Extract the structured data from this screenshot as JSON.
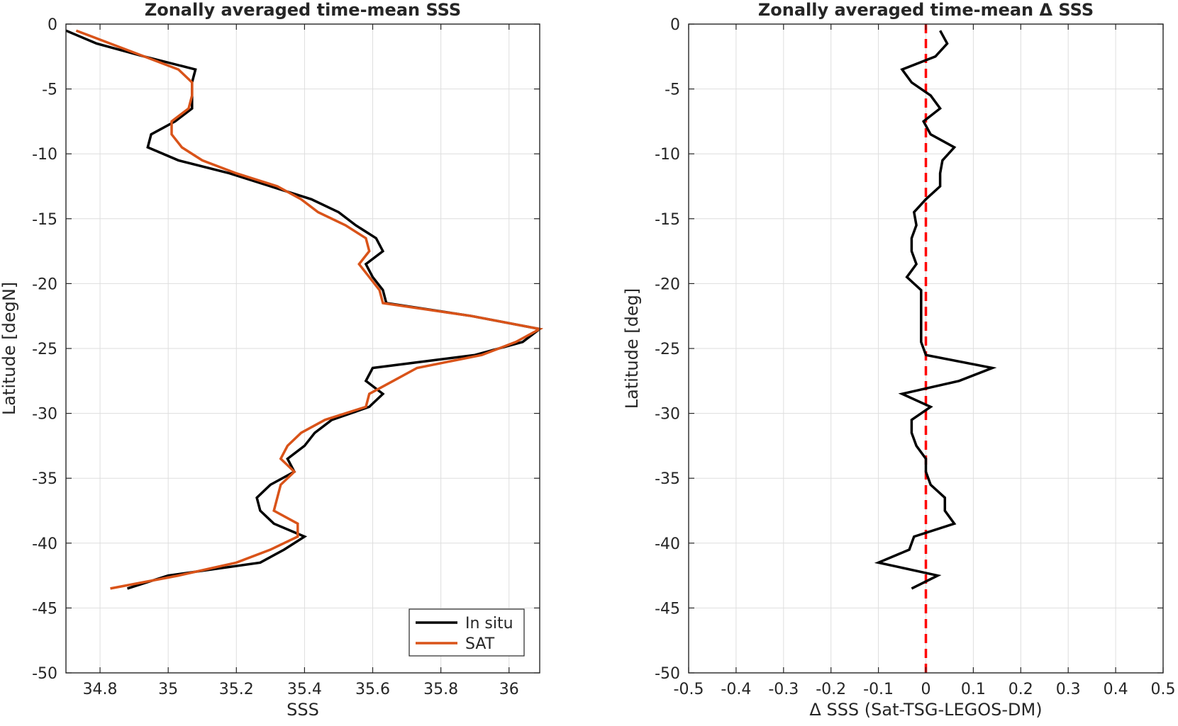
{
  "chart_data": [
    {
      "type": "line",
      "title": "Zonally averaged time-mean SSS",
      "xlabel": "SSS",
      "ylabel": "Latitude [degN]",
      "xlim": [
        34.7,
        36.09
      ],
      "ylim": [
        -50,
        0
      ],
      "xticks": [
        34.8,
        35,
        35.2,
        35.4,
        35.6,
        35.8,
        36
      ],
      "xtick_labels": [
        "34.8",
        "35",
        "35.2",
        "35.4",
        "35.6",
        "35.8",
        "36"
      ],
      "yticks": [
        0,
        -5,
        -10,
        -15,
        -20,
        -25,
        -30,
        -35,
        -40,
        -45,
        -50
      ],
      "ytick_labels": [
        "0",
        "-5",
        "-10",
        "-15",
        "-20",
        "-25",
        "-30",
        "-35",
        "-40",
        "-45",
        "-50"
      ],
      "grid": true,
      "legend": "bottom-right",
      "series": [
        {
          "name": "In situ",
          "color": "#000000",
          "points": [
            [
              34.7,
              -0.5
            ],
            [
              34.79,
              -1.5
            ],
            [
              34.93,
              -2.5
            ],
            [
              35.08,
              -3.5
            ],
            [
              35.07,
              -4.5
            ],
            [
              35.07,
              -5.5
            ],
            [
              35.07,
              -6.5
            ],
            [
              35.02,
              -7.5
            ],
            [
              34.95,
              -8.5
            ],
            [
              34.94,
              -9.5
            ],
            [
              35.03,
              -10.5
            ],
            [
              35.18,
              -11.5
            ],
            [
              35.3,
              -12.5
            ],
            [
              35.42,
              -13.5
            ],
            [
              35.5,
              -14.5
            ],
            [
              35.55,
              -15.5
            ],
            [
              35.61,
              -16.5
            ],
            [
              35.63,
              -17.5
            ],
            [
              35.58,
              -18.5
            ],
            [
              35.6,
              -19.5
            ],
            [
              35.63,
              -20.5
            ],
            [
              35.64,
              -21.5
            ],
            [
              35.89,
              -22.5
            ],
            [
              36.09,
              -23.5
            ],
            [
              36.04,
              -24.5
            ],
            [
              35.9,
              -25.5
            ],
            [
              35.6,
              -26.5
            ],
            [
              35.58,
              -27.5
            ],
            [
              35.63,
              -28.5
            ],
            [
              35.59,
              -29.5
            ],
            [
              35.48,
              -30.5
            ],
            [
              35.43,
              -31.5
            ],
            [
              35.4,
              -32.5
            ],
            [
              35.35,
              -33.5
            ],
            [
              35.37,
              -34.5
            ],
            [
              35.3,
              -35.5
            ],
            [
              35.26,
              -36.5
            ],
            [
              35.27,
              -37.5
            ],
            [
              35.31,
              -38.5
            ],
            [
              35.4,
              -39.5
            ],
            [
              35.34,
              -40.5
            ],
            [
              35.27,
              -41.5
            ],
            [
              35.0,
              -42.5
            ],
            [
              34.88,
              -43.5
            ]
          ]
        },
        {
          "name": "SAT",
          "color": "#d95319",
          "points": [
            [
              34.73,
              -0.5
            ],
            [
              34.83,
              -1.5
            ],
            [
              34.93,
              -2.5
            ],
            [
              35.03,
              -3.5
            ],
            [
              35.07,
              -4.5
            ],
            [
              35.07,
              -5.5
            ],
            [
              35.06,
              -6.5
            ],
            [
              35.01,
              -7.5
            ],
            [
              35.01,
              -8.5
            ],
            [
              35.04,
              -9.5
            ],
            [
              35.1,
              -10.5
            ],
            [
              35.2,
              -11.5
            ],
            [
              35.32,
              -12.5
            ],
            [
              35.39,
              -13.5
            ],
            [
              35.44,
              -14.5
            ],
            [
              35.52,
              -15.5
            ],
            [
              35.58,
              -16.5
            ],
            [
              35.59,
              -17.5
            ],
            [
              35.56,
              -18.5
            ],
            [
              35.59,
              -19.5
            ],
            [
              35.62,
              -20.5
            ],
            [
              35.63,
              -21.5
            ],
            [
              35.89,
              -22.5
            ],
            [
              36.09,
              -23.5
            ],
            [
              36.02,
              -24.5
            ],
            [
              35.92,
              -25.5
            ],
            [
              35.73,
              -26.5
            ],
            [
              35.66,
              -27.5
            ],
            [
              35.59,
              -28.5
            ],
            [
              35.58,
              -29.5
            ],
            [
              35.46,
              -30.5
            ],
            [
              35.39,
              -31.5
            ],
            [
              35.35,
              -32.5
            ],
            [
              35.33,
              -33.5
            ],
            [
              35.37,
              -34.5
            ],
            [
              35.33,
              -35.5
            ],
            [
              35.32,
              -36.5
            ],
            [
              35.31,
              -37.5
            ],
            [
              35.38,
              -38.5
            ],
            [
              35.38,
              -39.5
            ],
            [
              35.3,
              -40.5
            ],
            [
              35.2,
              -41.5
            ],
            [
              35.03,
              -42.5
            ],
            [
              34.83,
              -43.5
            ]
          ]
        }
      ]
    },
    {
      "type": "line",
      "title": "Zonally averaged time-mean Δ SSS",
      "xlabel": "Δ SSS (Sat-TSG-LEGOS-DM)",
      "ylabel": "Latitude [deg]",
      "xlim": [
        -0.5,
        0.5
      ],
      "ylim": [
        -50,
        0
      ],
      "xticks": [
        -0.5,
        -0.4,
        -0.3,
        -0.2,
        -0.1,
        0,
        0.1,
        0.2,
        0.3,
        0.4,
        0.5
      ],
      "xtick_labels": [
        "-0.5",
        "-0.4",
        "-0.3",
        "-0.2",
        "-0.1",
        "0",
        "0.1",
        "0.2",
        "0.3",
        "0.4",
        "0.5"
      ],
      "yticks": [
        0,
        -5,
        -10,
        -15,
        -20,
        -25,
        -30,
        -35,
        -40,
        -45,
        -50
      ],
      "ytick_labels": [
        "0",
        "-5",
        "-10",
        "-15",
        "-20",
        "-25",
        "-30",
        "-35",
        "-40",
        "-45",
        "-50"
      ],
      "grid": true,
      "reference_line": {
        "x": 0,
        "color": "#ff0000",
        "style": "dashed"
      },
      "series": [
        {
          "color": "#000000",
          "points": [
            [
              0.03,
              -0.5
            ],
            [
              0.045,
              -1.5
            ],
            [
              0.02,
              -2.5
            ],
            [
              -0.05,
              -3.5
            ],
            [
              -0.03,
              -4.5
            ],
            [
              0.01,
              -5.5
            ],
            [
              0.03,
              -6.5
            ],
            [
              -0.005,
              -7.5
            ],
            [
              0.01,
              -8.5
            ],
            [
              0.06,
              -9.5
            ],
            [
              0.035,
              -10.5
            ],
            [
              0.03,
              -11.5
            ],
            [
              0.03,
              -12.5
            ],
            [
              0.0,
              -13.5
            ],
            [
              -0.025,
              -14.5
            ],
            [
              -0.02,
              -15.5
            ],
            [
              -0.03,
              -16.5
            ],
            [
              -0.03,
              -17.5
            ],
            [
              -0.02,
              -18.5
            ],
            [
              -0.04,
              -19.5
            ],
            [
              -0.01,
              -20.5
            ],
            [
              -0.01,
              -21.5
            ],
            [
              -0.01,
              -22.5
            ],
            [
              -0.01,
              -23.5
            ],
            [
              -0.01,
              -24.5
            ],
            [
              0.0,
              -25.5
            ],
            [
              0.14,
              -26.5
            ],
            [
              0.07,
              -27.5
            ],
            [
              -0.05,
              -28.5
            ],
            [
              0.01,
              -29.5
            ],
            [
              -0.03,
              -30.5
            ],
            [
              -0.03,
              -31.5
            ],
            [
              -0.02,
              -32.5
            ],
            [
              0.0,
              -33.5
            ],
            [
              0.0,
              -34.5
            ],
            [
              0.01,
              -35.5
            ],
            [
              0.04,
              -36.5
            ],
            [
              0.04,
              -37.5
            ],
            [
              0.06,
              -38.5
            ],
            [
              -0.025,
              -39.5
            ],
            [
              -0.035,
              -40.5
            ],
            [
              -0.1,
              -41.5
            ],
            [
              0.025,
              -42.5
            ],
            [
              -0.03,
              -43.5
            ]
          ]
        }
      ]
    }
  ],
  "legend": {
    "entries": [
      {
        "label": "In situ",
        "color": "#000000"
      },
      {
        "label": "SAT",
        "color": "#d95319"
      }
    ]
  }
}
